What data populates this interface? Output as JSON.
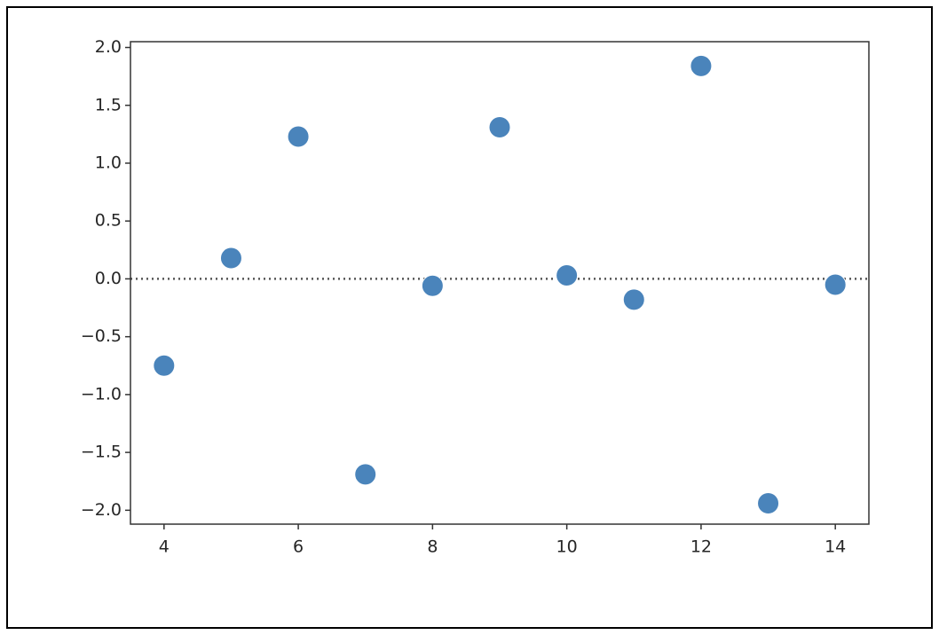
{
  "chart_data": {
    "type": "scatter",
    "x": [
      4,
      5,
      6,
      7,
      8,
      9,
      10,
      11,
      12,
      13,
      14
    ],
    "series": [
      {
        "color": "#4a84bb",
        "values": [
          -0.75,
          0.18,
          1.23,
          -1.69,
          -0.06,
          1.31,
          0.03,
          -0.18,
          1.84,
          -1.94,
          -0.05
        ]
      }
    ],
    "xlim": [
      3.5,
      14.5
    ],
    "xticks": [
      4,
      6,
      8,
      10,
      12,
      14
    ],
    "ylim": [
      -2.12,
      2.05
    ],
    "yticks": [
      {
        "value": -2,
        "label": "−2.0"
      },
      {
        "value": -1.5,
        "label": "−1.5"
      },
      {
        "value": -1,
        "label": "−1.0"
      },
      {
        "value": -0.5,
        "label": "−0.5"
      },
      {
        "value": 0,
        "label": "0.0"
      },
      {
        "value": 0.5,
        "label": "0.5"
      },
      {
        "value": 1,
        "label": "1.0"
      },
      {
        "value": 1.5,
        "label": "1.5"
      },
      {
        "value": 2,
        "label": "2.0"
      }
    ],
    "hline": 0,
    "grid": false
  }
}
